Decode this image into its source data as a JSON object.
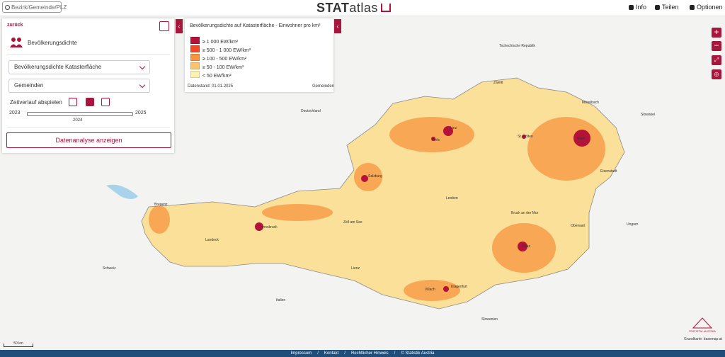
{
  "header": {
    "search": "Bezirk/Gemeinde/PLZ",
    "logo_bold": "STAT",
    "logo_rest": "atlas",
    "menu": [
      "Info",
      "Teilen",
      "Optionen"
    ]
  },
  "panel": {
    "back": "zurück",
    "theme": "Bevölkerungsdichte",
    "indicator": "Bevölkerungsdichte Katasterfläche",
    "level": "Gemeinden",
    "play": "Zeitverlauf abspielen",
    "year_start": "2023",
    "year_end": "2025",
    "year_current": "2024",
    "analyse": "Datenanalyse anzeigen"
  },
  "legend": {
    "title": "Bevölkerungsdichte auf Katasterfläche - Einwohner pro km²",
    "items": [
      {
        "label": "≥ 1 000 EW/km²",
        "color": "#b5123a"
      },
      {
        "label": "≥ 500 - 1 000 EW/km²",
        "color": "#ee4a2a"
      },
      {
        "label": "≥ 100 - 500 EW/km²",
        "color": "#f7953e"
      },
      {
        "label": "≥ 50 - 100 EW/km²",
        "color": "#fbc46c"
      },
      {
        "label": "< 50 EW/km²",
        "color": "#fdf1b0"
      }
    ],
    "status": "Datenstand: 01.01.2025",
    "unit": "Gemeinden"
  },
  "map": {
    "places": [
      "Linz",
      "Wels",
      "St. Pölten",
      "Wien",
      "Mistelbach",
      "Eisenstadt",
      "Salzburg",
      "Bregenz",
      "Innsbruck",
      "Landeck",
      "Zell am See",
      "Leoben",
      "Bruck an der Mur",
      "Graz",
      "Oberwart",
      "Villach",
      "Klagenfurt",
      "Lienz",
      "Zwettl"
    ],
    "countries": [
      "Tschechische Republik",
      "Deutschland",
      "Slowakei",
      "Ungarn",
      "Schweiz",
      "Italien",
      "Slowenien"
    ],
    "scale": "50 km",
    "attribution": "Grundkarte: basemap.at",
    "org": "STATISTIK AUSTRIA"
  },
  "footer": [
    "Impressum",
    "Kontakt",
    "Rechtlicher Hinweis",
    "© Statistik Austria"
  ]
}
